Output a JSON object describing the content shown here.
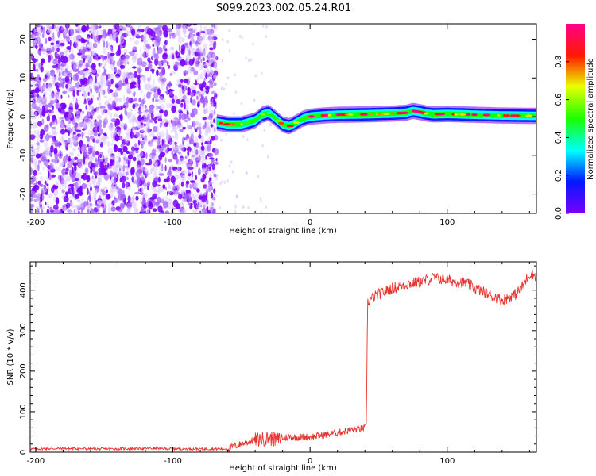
{
  "title": "S099.2023.002.05.24.R01",
  "colors": {
    "snr_line": "#e8322e",
    "axis": "#000000"
  },
  "chart_data": [
    {
      "type": "heatmap",
      "xlabel": "Height of straight line (km)",
      "ylabel": "Frequency (Hz)",
      "xlim": [
        -204,
        165
      ],
      "ylim": [
        -25,
        24
      ],
      "x_ticks": [
        -200,
        -100,
        0,
        100
      ],
      "y_ticks": [
        -20,
        -10,
        0,
        10,
        20
      ],
      "noise_region_x": [
        -204,
        -68
      ],
      "trace": {
        "x": [
          -68,
          -60,
          -50,
          -45,
          -40,
          -35,
          -30,
          -25,
          -20,
          -15,
          -10,
          -5,
          0,
          10,
          20,
          40,
          60,
          70,
          75,
          80,
          85,
          90,
          100,
          120,
          140,
          165
        ],
        "freq": [
          -1.5,
          -2,
          -2,
          -1.5,
          -1,
          0.5,
          1,
          -0.5,
          -2,
          -2.5,
          -1.5,
          -0.5,
          0,
          0.3,
          0.5,
          0.6,
          0.8,
          1,
          1.5,
          1.2,
          0.8,
          0.6,
          0.7,
          0.5,
          0.3,
          0.2
        ]
      },
      "colorbar": {
        "label": "Normalized spectral amplitude",
        "range": [
          0,
          1
        ],
        "ticks": [
          "0.0",
          "0.2",
          "0.4",
          "0.6",
          "0.8"
        ],
        "colormap": "gist_rainbow_r"
      },
      "grid": false
    },
    {
      "type": "line",
      "xlabel": "Height of straight line (km)",
      "ylabel": "SNR (10 * v/v)",
      "xlim": [
        -204,
        165
      ],
      "ylim": [
        0,
        470
      ],
      "x_ticks": [
        -200,
        -100,
        0,
        100
      ],
      "y_ticks": [
        0,
        100,
        200,
        300,
        400
      ],
      "series": [
        {
          "x": [
            -204,
            -180,
            -150,
            -120,
            -80,
            -60,
            -55,
            -50,
            -45,
            -40,
            -35,
            -30,
            -25,
            -20,
            -15,
            -10,
            0,
            10,
            20,
            30,
            40,
            41,
            42,
            45,
            50,
            60,
            70,
            80,
            90,
            100,
            110,
            115,
            120,
            130,
            140,
            150,
            155,
            160,
            165
          ],
          "y": [
            8,
            9,
            8,
            9,
            8,
            8,
            15,
            20,
            25,
            30,
            32,
            35,
            30,
            35,
            38,
            37,
            38,
            42,
            48,
            55,
            60,
            62,
            370,
            380,
            390,
            405,
            415,
            420,
            430,
            425,
            420,
            415,
            405,
            390,
            375,
            390,
            410,
            440,
            435
          ]
        }
      ],
      "grid": false
    }
  ]
}
